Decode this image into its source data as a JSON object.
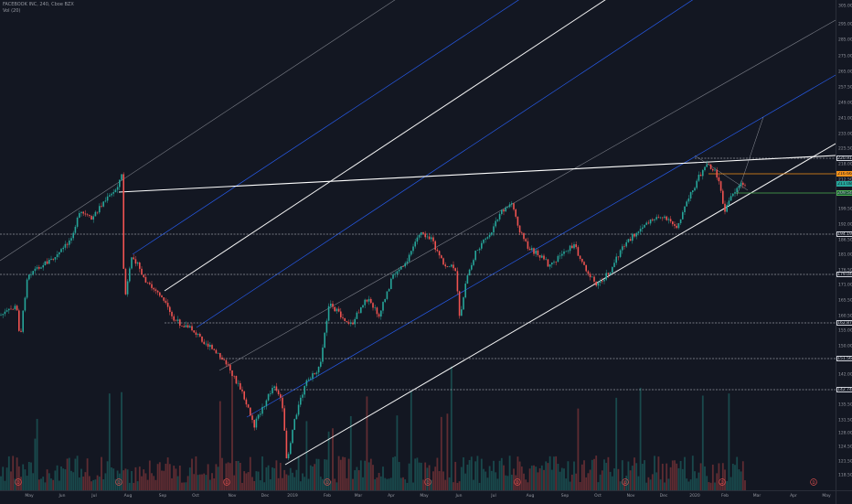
{
  "legend": {
    "symbol_line": "FACEBOOK INC, 240, Cboe BZX",
    "volume_line": "Vol (20)"
  },
  "price_axis": {
    "labels": [
      "305.00",
      "295.00",
      "285.00",
      "275.00",
      "265.00",
      "257.50",
      "249.00",
      "241.00",
      "233.00",
      "225.50",
      "218.00",
      "212.50",
      "205.50",
      "199.50",
      "192.00",
      "186.50",
      "181.00",
      "176.50",
      "171.00",
      "165.50",
      "160.50",
      "155.00",
      "150.00",
      "147.00",
      "142.00",
      "139.00",
      "135.50",
      "131.50",
      "128.00",
      "124.50",
      "121.50",
      "118.50"
    ],
    "tags": [
      {
        "text": "220.91",
        "bg": "#131722",
        "fg": "#d1d4dc",
        "border": "#d1d4dc"
      },
      {
        "text": "216.66",
        "bg": "#f7931a",
        "fg": "#131722",
        "border": "#f7931a"
      },
      {
        "text": "211.08",
        "bg": "#26a69a",
        "fg": "#131722",
        "border": "#26a69a"
      },
      {
        "text": "209.54",
        "bg": "#1e5d3a",
        "fg": "#b2b5be",
        "border": "#4caf50"
      },
      {
        "text": "194.19",
        "bg": "#131722",
        "fg": "#d1d4dc",
        "border": "#d1d4dc"
      },
      {
        "text": "179.04",
        "bg": "#131722",
        "fg": "#d1d4dc",
        "border": "#d1d4dc"
      },
      {
        "text": "162.87",
        "bg": "#131722",
        "fg": "#d1d4dc",
        "border": "#d1d4dc"
      },
      {
        "text": "151.56",
        "bg": "#131722",
        "fg": "#d1d4dc",
        "border": "#d1d4dc"
      },
      {
        "text": "142.74",
        "bg": "#131722",
        "fg": "#d1d4dc",
        "border": "#d1d4dc"
      }
    ]
  },
  "time_axis": {
    "labels": [
      "May",
      "Jun",
      "Jul",
      "Aug",
      "Sep",
      "Oct",
      "Nov",
      "Dec",
      "2019",
      "Feb",
      "Mar",
      "Apr",
      "May",
      "Jun",
      "Jul",
      "Aug",
      "Sep",
      "Oct",
      "Nov",
      "Dec",
      "2020",
      "Feb",
      "Mar",
      "Apr",
      "May"
    ]
  },
  "colors": {
    "background": "#131722",
    "up": "#26a69a",
    "down": "#ef5350",
    "channel_white": "#ffffff",
    "channel_blue": "#2962ff",
    "level_orange": "#f7931a",
    "level_green": "#4caf50"
  },
  "horizontal_levels": [
    "220.91",
    "194.19",
    "179.04",
    "162.87",
    "151.56",
    "142.74"
  ],
  "event_markers": [
    "D",
    "D",
    "D",
    "D",
    "D",
    "D",
    "D",
    "D",
    "D",
    "D",
    "D"
  ]
}
